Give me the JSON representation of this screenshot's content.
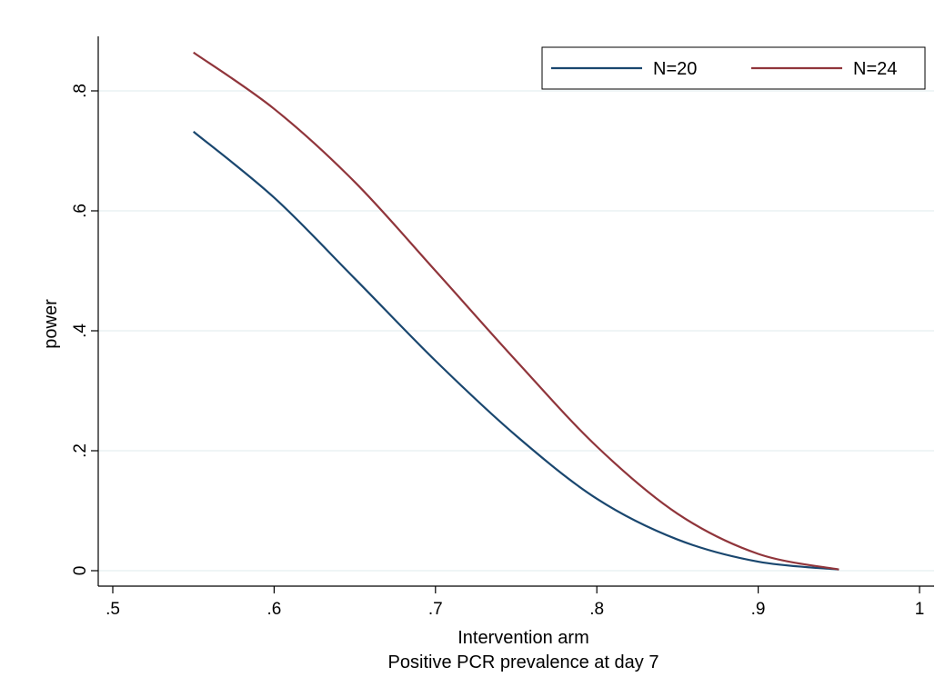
{
  "chart_data": {
    "type": "line",
    "xlabel": "Intervention arm",
    "xlabel2": "Positive PCR prevalence at day 7",
    "ylabel": "power",
    "xlim": [
      0.5,
      1.0
    ],
    "ylim": [
      0.0,
      0.8
    ],
    "xticks": [
      0.5,
      0.6,
      0.7,
      0.8,
      0.9,
      1.0
    ],
    "xtick_labels": [
      ".5",
      ".6",
      ".7",
      ".8",
      ".9",
      "1"
    ],
    "yticks": [
      0.0,
      0.2,
      0.4,
      0.6,
      0.8
    ],
    "ytick_labels": [
      "0",
      ".2",
      ".4",
      ".6",
      ".8"
    ],
    "grid": true,
    "legend_position": "top-right",
    "series": [
      {
        "name": "N=20",
        "color": "#1a476f",
        "x": [
          0.55,
          0.6,
          0.65,
          0.7,
          0.75,
          0.8,
          0.85,
          0.9,
          0.95
        ],
        "y": [
          0.732,
          0.622,
          0.487,
          0.35,
          0.225,
          0.12,
          0.052,
          0.015,
          0.002
        ]
      },
      {
        "name": "N=24",
        "color": "#90353b",
        "x": [
          0.55,
          0.6,
          0.65,
          0.7,
          0.75,
          0.8,
          0.85,
          0.9,
          0.95
        ],
        "y": [
          0.864,
          0.77,
          0.648,
          0.5,
          0.35,
          0.207,
          0.095,
          0.028,
          0.002
        ]
      }
    ]
  }
}
